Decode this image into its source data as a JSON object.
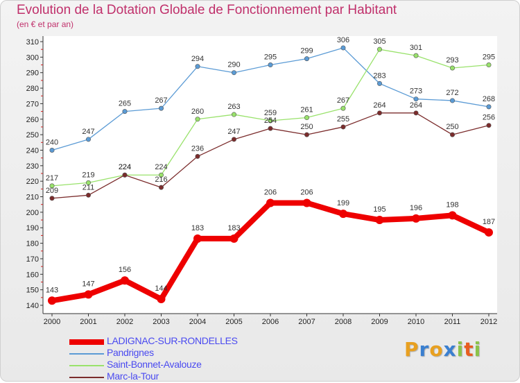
{
  "chart_data": {
    "type": "line",
    "title": "Evolution de la Dotation Globale de Fonctionnement par Habitant",
    "subtitle": "(en € et par an)",
    "categories": [
      "2000",
      "2001",
      "2002",
      "2003",
      "2004",
      "2005",
      "2006",
      "2007",
      "2008",
      "2009",
      "2010",
      "2011",
      "2012"
    ],
    "ylim": [
      140,
      310
    ],
    "yticks": [
      140,
      150,
      160,
      170,
      180,
      190,
      200,
      210,
      220,
      230,
      240,
      250,
      260,
      270,
      280,
      290,
      300,
      310
    ],
    "grid": false,
    "legend_position": "bottom-left",
    "series": [
      {
        "name": "LADIGNAC-SUR-RONDELLES",
        "color": "#ee0000",
        "values": [
          143,
          147,
          156,
          144,
          183,
          183,
          206,
          206,
          199,
          195,
          196,
          198,
          187
        ]
      },
      {
        "name": "Pandrignes",
        "color": "#5b9bd5",
        "values": [
          240,
          247,
          265,
          267,
          294,
          290,
          295,
          299,
          306,
          283,
          273,
          272,
          268
        ]
      },
      {
        "name": "Saint-Bonnet-Avalouze",
        "color": "#99e26b",
        "values": [
          217,
          219,
          224,
          224,
          260,
          263,
          259,
          261,
          267,
          305,
          301,
          293,
          295
        ]
      },
      {
        "name": "Marc-la-Tour",
        "color": "#7b2c2c",
        "values": [
          209,
          211,
          224,
          216,
          236,
          247,
          254,
          250,
          255,
          264,
          264,
          250,
          256
        ]
      }
    ]
  },
  "logo": {
    "letters": [
      "P",
      "r",
      "o",
      "x",
      "i",
      "t",
      "i"
    ],
    "colors": [
      "#e8a020",
      "#3a7fd0",
      "#e8a020",
      "#3a7fd0",
      "#8bc34a",
      "#e85d20",
      "#8bc34a"
    ]
  }
}
